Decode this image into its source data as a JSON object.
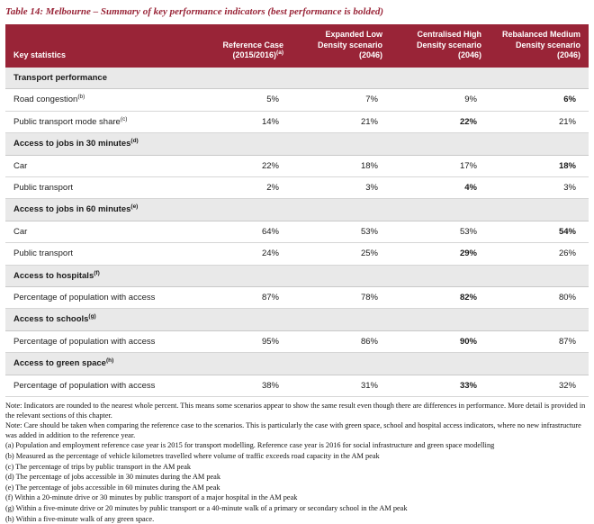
{
  "title": {
    "text": "Table 14: Melbourne – Summary of key performance indicators (best performance is bolded)"
  },
  "colors": {
    "header_bg": "#992437",
    "section_bg": "#e9e9e9",
    "accent": "#992437"
  },
  "table": {
    "header": [
      {
        "label": "Key statistics",
        "sup": ""
      },
      {
        "label": "Reference Case (2015/2016)",
        "sup": "(a)"
      },
      {
        "label": "Expanded Low Density scenario (2046)",
        "sup": ""
      },
      {
        "label": "Centralised High Density scenario (2046)",
        "sup": ""
      },
      {
        "label": "Rebalanced Medium Density scenario (2046)",
        "sup": ""
      }
    ],
    "sections": [
      {
        "header": {
          "label": "Transport performance",
          "sup": ""
        },
        "rows": [
          {
            "label": "Road congestion",
            "sup": "(b)",
            "values": [
              "5%",
              "7%",
              "9%",
              "6%"
            ],
            "bold": 3
          },
          {
            "label": "Public transport mode share",
            "sup": "(c)",
            "values": [
              "14%",
              "21%",
              "22%",
              "21%"
            ],
            "bold": 2
          }
        ]
      },
      {
        "header": {
          "label": "Access to jobs in 30 minutes",
          "sup": "(d)"
        },
        "rows": [
          {
            "label": "Car",
            "sup": "",
            "values": [
              "22%",
              "18%",
              "17%",
              "18%"
            ],
            "bold": 3
          },
          {
            "label": "Public transport",
            "sup": "",
            "values": [
              "2%",
              "3%",
              "4%",
              "3%"
            ],
            "bold": 2
          }
        ]
      },
      {
        "header": {
          "label": "Access to jobs in 60 minutes",
          "sup": "(e)"
        },
        "rows": [
          {
            "label": "Car",
            "sup": "",
            "values": [
              "64%",
              "53%",
              "53%",
              "54%"
            ],
            "bold": 3
          },
          {
            "label": "Public transport",
            "sup": "",
            "values": [
              "24%",
              "25%",
              "29%",
              "26%"
            ],
            "bold": 2
          }
        ]
      },
      {
        "header": {
          "label": "Access to hospitals",
          "sup": "(f)"
        },
        "rows": [
          {
            "label": "Percentage of population with access",
            "sup": "",
            "values": [
              "87%",
              "78%",
              "82%",
              "80%"
            ],
            "bold": 2
          }
        ]
      },
      {
        "header": {
          "label": "Access to schools",
          "sup": "(g)"
        },
        "rows": [
          {
            "label": "Percentage of population with access",
            "sup": "",
            "values": [
              "95%",
              "86%",
              "90%",
              "87%"
            ],
            "bold": 2
          }
        ]
      },
      {
        "header": {
          "label": "Access to green space",
          "sup": "(h)"
        },
        "rows": [
          {
            "label": "Percentage of population with access",
            "sup": "",
            "values": [
              "38%",
              "31%",
              "33%",
              "32%"
            ],
            "bold": 2
          }
        ]
      }
    ]
  },
  "notes": [
    "Note: Indicators are rounded to the nearest whole percent. This means some scenarios appear to show the same result even though there are differences in performance. More detail is provided in the relevant sections of this chapter.",
    "Note: Care should be taken when comparing the reference case to the scenarios. This is particularly the case with green space, school and hospital access indicators, where no new infrastructure was added in addition to the reference year.",
    "(a) Population and employment reference case year is 2015 for transport modelling. Reference case year is 2016 for social infrastructure and green space modelling",
    "(b) Measured as the percentage of vehicle kilometres travelled where volume of traffic exceeds road capacity in the AM peak",
    "(c) The percentage of trips by public transport in the AM peak",
    "(d) The percentage of jobs accessible in 30 minutes during the AM peak",
    "(e) The percentage of jobs accessible in 60 minutes during the AM peak",
    "(f) Within a 20-minute drive or 30 minutes by public transport of a major hospital in the AM peak",
    "(g) Within a five-minute drive or 20 minutes by public transport or a 40-minute walk of a primary or secondary school in the AM peak",
    "(h) Within a five-minute walk of any green space."
  ]
}
